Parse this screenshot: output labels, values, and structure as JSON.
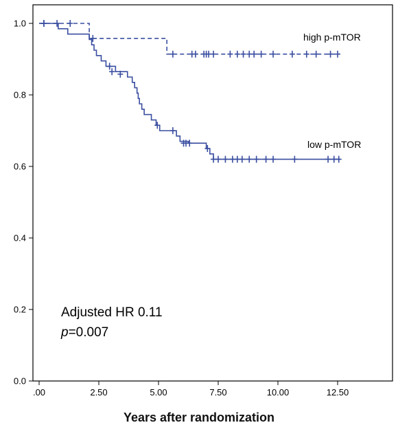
{
  "chart_data": {
    "type": "line",
    "title": "",
    "xlabel": "Years after randomization",
    "ylabel": "",
    "xlim": [
      0,
      14.5
    ],
    "ylim": [
      0,
      1.0
    ],
    "x_ticks": [
      0,
      2.5,
      5,
      7.5,
      10,
      12.5
    ],
    "x_tick_labels": [
      ".00",
      "2.50",
      "5.00",
      "7.50",
      "10.00",
      "12.50"
    ],
    "y_ticks": [
      0,
      0.2,
      0.4,
      0.6,
      0.8,
      1.0
    ],
    "y_tick_labels": [
      "0.0",
      "0.2",
      "0.4",
      "0.6",
      "0.8",
      "1.0"
    ],
    "grid": false,
    "legend": "none",
    "series": [
      {
        "name": "high p-mTOR",
        "style": "dashed",
        "color": "#3a4ea0",
        "steps": [
          [
            0,
            1.0
          ],
          [
            2.1,
            0.958
          ],
          [
            5.35,
            0.914
          ],
          [
            12.6,
            0.914
          ]
        ],
        "censored": [
          [
            0.2,
            1.0
          ],
          [
            0.75,
            1.0
          ],
          [
            1.3,
            1.0
          ],
          [
            2.25,
            0.958
          ],
          [
            5.6,
            0.914
          ],
          [
            6.4,
            0.914
          ],
          [
            6.55,
            0.914
          ],
          [
            6.9,
            0.914
          ],
          [
            7.0,
            0.914
          ],
          [
            7.1,
            0.914
          ],
          [
            7.3,
            0.914
          ],
          [
            8.0,
            0.914
          ],
          [
            8.3,
            0.914
          ],
          [
            8.55,
            0.914
          ],
          [
            8.8,
            0.914
          ],
          [
            9.0,
            0.914
          ],
          [
            9.3,
            0.914
          ],
          [
            9.8,
            0.914
          ],
          [
            10.6,
            0.914
          ],
          [
            11.2,
            0.914
          ],
          [
            11.6,
            0.914
          ],
          [
            12.2,
            0.914
          ],
          [
            12.5,
            0.914
          ]
        ]
      },
      {
        "name": "low p-mTOR",
        "style": "solid",
        "color": "#3a4ea0",
        "steps": [
          [
            0,
            1.0
          ],
          [
            0.8,
            0.985
          ],
          [
            1.2,
            0.97
          ],
          [
            2.1,
            0.955
          ],
          [
            2.2,
            0.94
          ],
          [
            2.3,
            0.925
          ],
          [
            2.4,
            0.91
          ],
          [
            2.6,
            0.895
          ],
          [
            2.8,
            0.88
          ],
          [
            3.2,
            0.865
          ],
          [
            3.7,
            0.85
          ],
          [
            3.9,
            0.835
          ],
          [
            4.0,
            0.82
          ],
          [
            4.1,
            0.805
          ],
          [
            4.15,
            0.79
          ],
          [
            4.2,
            0.775
          ],
          [
            4.3,
            0.76
          ],
          [
            4.4,
            0.745
          ],
          [
            4.7,
            0.73
          ],
          [
            4.9,
            0.715
          ],
          [
            5.05,
            0.7
          ],
          [
            5.75,
            0.685
          ],
          [
            5.9,
            0.67
          ],
          [
            6.25,
            0.665
          ],
          [
            7.0,
            0.65
          ],
          [
            7.15,
            0.635
          ],
          [
            7.3,
            0.62
          ],
          [
            12.6,
            0.62
          ]
        ],
        "censored": [
          [
            0.2,
            1.0
          ],
          [
            2.95,
            0.88
          ],
          [
            3.05,
            0.865
          ],
          [
            3.4,
            0.858
          ],
          [
            4.95,
            0.715
          ],
          [
            5.6,
            0.7
          ],
          [
            6.05,
            0.665
          ],
          [
            6.15,
            0.665
          ],
          [
            6.3,
            0.665
          ],
          [
            7.05,
            0.65
          ],
          [
            7.3,
            0.62
          ],
          [
            7.5,
            0.62
          ],
          [
            7.8,
            0.62
          ],
          [
            8.1,
            0.62
          ],
          [
            8.3,
            0.62
          ],
          [
            8.5,
            0.62
          ],
          [
            8.8,
            0.62
          ],
          [
            9.1,
            0.62
          ],
          [
            9.5,
            0.62
          ],
          [
            9.8,
            0.62
          ],
          [
            10.7,
            0.62
          ],
          [
            12.1,
            0.62
          ],
          [
            12.35,
            0.62
          ],
          [
            12.55,
            0.62
          ]
        ]
      }
    ],
    "annotations": {
      "line1": "Adjusted HR 0.11",
      "p_label": "p",
      "p_value": "=0.007"
    }
  }
}
